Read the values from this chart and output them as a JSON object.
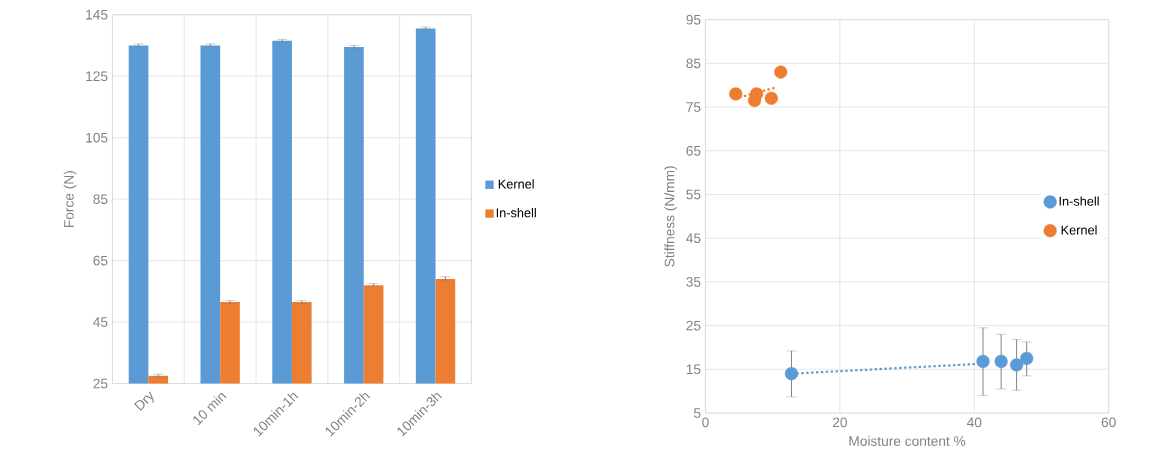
{
  "chart_data": [
    {
      "type": "bar",
      "ylabel": "Force (N)",
      "categories": [
        "Dry",
        "10 min",
        "10min-1h",
        "10min-2h",
        "10min-3h"
      ],
      "series": [
        {
          "name": "Kernel",
          "color": "#5b9bd5",
          "values": [
            135,
            135,
            136.5,
            134.5,
            140.5
          ],
          "errors": [
            0.5,
            0.5,
            0.5,
            0.5,
            0.5
          ]
        },
        {
          "name": "In-shell",
          "color": "#ed7d31",
          "values": [
            27.5,
            51.5,
            51.5,
            57,
            59
          ],
          "errors": [
            0.5,
            0.5,
            0.5,
            0.5,
            0.8
          ]
        }
      ],
      "ylim": [
        25,
        145
      ],
      "yticks": [
        25,
        45,
        65,
        85,
        105,
        125,
        145
      ],
      "grid": true,
      "legend": "right"
    },
    {
      "type": "scatter",
      "xlabel": "Moisture content %",
      "ylabel": "Stiffness (N/mm)",
      "marker": "circle",
      "series": [
        {
          "name": "In-shell",
          "color": "#5b9bd5",
          "x": [
            12.8,
            41.3,
            44,
            46.3,
            47.8
          ],
          "values": [
            14,
            16.8,
            16.8,
            16,
            17.5
          ],
          "errors": [
            [
              8.7,
              19.2
            ],
            [
              9,
              24.5
            ],
            [
              10.5,
              23
            ],
            [
              10.2,
              21.8
            ],
            [
              13.5,
              21.3
            ]
          ]
        },
        {
          "name": "Kernel",
          "color": "#ed7d31",
          "x": [
            4.5,
            7.3,
            7.6,
            9.8,
            11.2
          ],
          "values": [
            78,
            76.5,
            78,
            77,
            83
          ]
        },
        {
          "type": "line",
          "color": "#5b9bd5",
          "line_style": "dotted",
          "marker": "none",
          "x": [
            12.8,
            41.3
          ],
          "values": [
            14,
            16.3
          ]
        },
        {
          "type": "line",
          "color": "#ed7d31",
          "line_style": "dotted",
          "marker": "none",
          "x": [
            5,
            10.5
          ],
          "values": [
            77.2,
            79.5
          ]
        }
      ],
      "xlim": [
        0,
        60
      ],
      "xticks": [
        0,
        20,
        40,
        60
      ],
      "ylim": [
        5,
        95
      ],
      "yticks": [
        5,
        15,
        25,
        35,
        45,
        55,
        65,
        75,
        85,
        95
      ],
      "grid": true,
      "legend": "right"
    }
  ]
}
